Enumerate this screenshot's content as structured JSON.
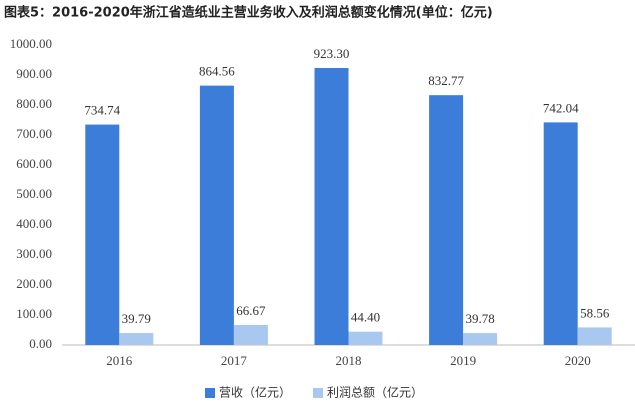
{
  "chart_data": {
    "type": "bar",
    "title": "图表5：2016-2020年浙江省造纸业主营业务收入及利润总额变化情况(单位：亿元)",
    "categories": [
      "2016",
      "2017",
      "2018",
      "2019",
      "2020"
    ],
    "series": [
      {
        "name": "营收（亿元）",
        "color": "#3b7dd8",
        "values": [
          734.74,
          864.56,
          923.3,
          832.77,
          742.04
        ],
        "value_labels": [
          "734.74",
          "864.56",
          "923.30",
          "832.77",
          "742.04"
        ]
      },
      {
        "name": "利润总额（亿元）",
        "color": "#a8c8f0",
        "values": [
          39.79,
          66.67,
          44.4,
          39.78,
          58.56
        ],
        "value_labels": [
          "39.79",
          "66.67",
          "44.40",
          "39.78",
          "58.56"
        ]
      }
    ],
    "ylim": [
      0,
      1000
    ],
    "yticks": [
      {
        "value": 0,
        "label": "0.00"
      },
      {
        "value": 100,
        "label": "100.00"
      },
      {
        "value": 200,
        "label": "200.00"
      },
      {
        "value": 300,
        "label": "300.00"
      },
      {
        "value": 400,
        "label": "400.00"
      },
      {
        "value": 500,
        "label": "500.00"
      },
      {
        "value": 600,
        "label": "600.00"
      },
      {
        "value": 700,
        "label": "700.00"
      },
      {
        "value": 800,
        "label": "800.00"
      },
      {
        "value": 900,
        "label": "900.00"
      },
      {
        "value": 1000,
        "label": "1000.00"
      }
    ],
    "legend": "bottom"
  }
}
